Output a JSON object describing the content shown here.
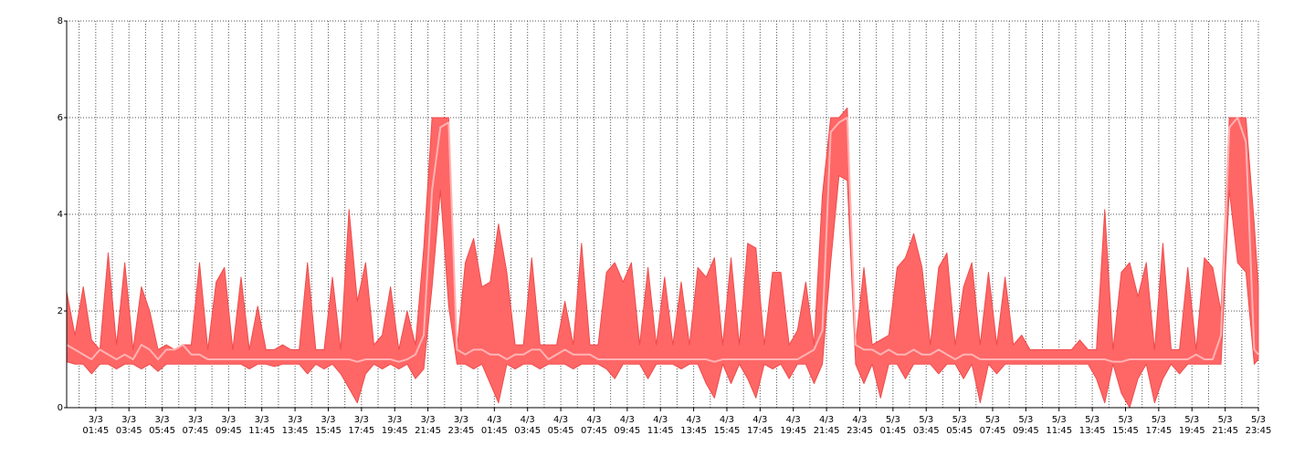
{
  "chart_data": {
    "type": "range-area",
    "x": [
      "3/3 00:00",
      "3/3 00:30",
      "3/3 01:00",
      "3/3 01:30",
      "3/3 02:00",
      "3/3 02:30",
      "3/3 03:00",
      "3/3 03:30",
      "3/3 04:00",
      "3/3 04:30",
      "3/3 05:00",
      "3/3 05:30",
      "3/3 06:00",
      "3/3 06:30",
      "3/3 07:00",
      "3/3 07:30",
      "3/3 08:00",
      "3/3 08:30",
      "3/3 09:00",
      "3/3 09:30",
      "3/3 10:00",
      "3/3 10:30",
      "3/3 11:00",
      "3/3 11:30",
      "3/3 12:00",
      "3/3 12:30",
      "3/3 13:00",
      "3/3 13:30",
      "3/3 14:00",
      "3/3 14:30",
      "3/3 15:00",
      "3/3 15:30",
      "3/3 16:00",
      "3/3 16:30",
      "3/3 17:00",
      "3/3 17:30",
      "3/3 18:00",
      "3/3 18:30",
      "3/3 19:00",
      "3/3 19:30",
      "3/3 20:00",
      "3/3 20:30",
      "3/3 21:00",
      "3/3 21:30",
      "3/3 22:00",
      "3/3 22:30",
      "3/3 23:00",
      "3/3 23:30",
      "4/3 00:00",
      "4/3 00:30",
      "4/3 01:00",
      "4/3 01:30",
      "4/3 02:00",
      "4/3 02:30",
      "4/3 03:00",
      "4/3 03:30",
      "4/3 04:00",
      "4/3 04:30",
      "4/3 05:00",
      "4/3 05:30",
      "4/3 06:00",
      "4/3 06:30",
      "4/3 07:00",
      "4/3 07:30",
      "4/3 08:00",
      "4/3 08:30",
      "4/3 09:00",
      "4/3 09:30",
      "4/3 10:00",
      "4/3 10:30",
      "4/3 11:00",
      "4/3 11:30",
      "4/3 12:00",
      "4/3 12:30",
      "4/3 13:00",
      "4/3 13:30",
      "4/3 14:00",
      "4/3 14:30",
      "4/3 15:00",
      "4/3 15:30",
      "4/3 16:00",
      "4/3 16:30",
      "4/3 17:00",
      "4/3 17:30",
      "4/3 18:00",
      "4/3 18:30",
      "4/3 19:00",
      "4/3 19:30",
      "4/3 20:00",
      "4/3 20:30",
      "4/3 21:00",
      "4/3 21:30",
      "4/3 22:00",
      "4/3 22:30",
      "4/3 23:00",
      "4/3 23:30",
      "5/3 00:00",
      "5/3 00:30",
      "5/3 01:00",
      "5/3 01:30",
      "5/3 02:00",
      "5/3 02:30",
      "5/3 03:00",
      "5/3 03:30",
      "5/3 04:00",
      "5/3 04:30",
      "5/3 05:00",
      "5/3 05:30",
      "5/3 06:00",
      "5/3 06:30",
      "5/3 07:00",
      "5/3 07:30",
      "5/3 08:00",
      "5/3 08:30",
      "5/3 09:00",
      "5/3 09:30",
      "5/3 10:00",
      "5/3 10:30",
      "5/3 11:00",
      "5/3 11:30",
      "5/3 12:00",
      "5/3 12:30",
      "5/3 13:00",
      "5/3 13:30",
      "5/3 14:00",
      "5/3 14:30",
      "5/3 15:00",
      "5/3 15:30",
      "5/3 16:00",
      "5/3 16:30",
      "5/3 17:00",
      "5/3 17:30",
      "5/3 18:00",
      "5/3 18:30",
      "5/3 19:00",
      "5/3 19:30",
      "5/3 20:00",
      "5/3 20:30",
      "5/3 21:00",
      "5/3 21:30",
      "5/3 22:00",
      "5/3 22:30",
      "5/3 23:00",
      "5/3 23:30",
      "5/3 23:45"
    ],
    "band": {
      "color": "#ff6666",
      "edge_color": "#ee4c4c",
      "upper": [
        2.4,
        1.5,
        2.5,
        1.4,
        1.2,
        3.2,
        1.3,
        3.0,
        1.2,
        2.5,
        2.0,
        1.2,
        1.3,
        1.2,
        1.3,
        1.3,
        3.0,
        1.2,
        2.6,
        2.9,
        1.2,
        2.7,
        1.2,
        2.1,
        1.2,
        1.2,
        1.3,
        1.2,
        1.2,
        3.0,
        1.2,
        1.2,
        2.7,
        1.2,
        4.1,
        2.2,
        3.0,
        1.3,
        1.5,
        2.5,
        1.2,
        2.0,
        1.3,
        3.3,
        6,
        6,
        6,
        1.2,
        3.0,
        3.5,
        2.5,
        2.6,
        3.8,
        2.8,
        1.3,
        1.3,
        3.1,
        1.3,
        1.3,
        1.3,
        2.2,
        1.3,
        3.4,
        1.3,
        1.3,
        2.8,
        3.0,
        2.6,
        3.0,
        1.3,
        2.9,
        1.3,
        2.7,
        1.3,
        2.6,
        1.3,
        2.9,
        2.7,
        3.1,
        1.3,
        3.1,
        1.3,
        3.4,
        3.3,
        1.3,
        2.8,
        2.8,
        1.3,
        1.6,
        2.6,
        1.3,
        4.4,
        6,
        6,
        6.2,
        1.3,
        2.9,
        1.3,
        1.4,
        1.5,
        2.9,
        3.1,
        3.6,
        2.9,
        1.3,
        2.9,
        3.2,
        1.3,
        2.5,
        3.0,
        1.3,
        2.8,
        1.3,
        2.7,
        1.3,
        1.5,
        1.2,
        1.2,
        1.2,
        1.2,
        1.2,
        1.2,
        1.4,
        1.2,
        1.2,
        4.1,
        1.2,
        2.8,
        3.0,
        2.3,
        3.0,
        1.2,
        3.4,
        1.2,
        1.2,
        2.9,
        1.2,
        3.1,
        2.9,
        2.0,
        6,
        6,
        6,
        3.8,
        2.5
      ],
      "lower": [
        0.95,
        0.9,
        0.9,
        0.7,
        0.9,
        0.9,
        0.8,
        0.9,
        0.9,
        0.8,
        0.9,
        0.75,
        0.9,
        0.9,
        0.9,
        0.9,
        0.9,
        0.9,
        0.9,
        0.9,
        0.9,
        0.9,
        0.8,
        0.9,
        0.9,
        0.85,
        0.9,
        0.9,
        0.9,
        0.7,
        0.9,
        0.8,
        0.9,
        0.7,
        0.4,
        0.1,
        0.7,
        0.9,
        0.8,
        0.9,
        0.8,
        0.9,
        0.6,
        0.8,
        2.5,
        4.5,
        2.1,
        0.9,
        0.9,
        0.8,
        0.9,
        0.5,
        0.1,
        0.9,
        0.8,
        0.9,
        0.9,
        0.8,
        0.9,
        0.9,
        0.9,
        0.8,
        0.9,
        0.9,
        0.9,
        0.8,
        0.6,
        0.9,
        0.9,
        0.9,
        0.6,
        0.9,
        0.9,
        0.9,
        0.8,
        0.9,
        0.9,
        0.5,
        0.2,
        0.9,
        0.5,
        0.9,
        0.6,
        0.2,
        0.9,
        0.8,
        0.9,
        0.6,
        0.9,
        0.9,
        0.5,
        0.9,
        3,
        4.8,
        4.7,
        0.9,
        0.5,
        0.9,
        0.2,
        0.9,
        0.9,
        0.6,
        0.9,
        0.9,
        0.9,
        0.7,
        0.9,
        0.9,
        0.6,
        0.9,
        0.1,
        0.9,
        0.7,
        0.9,
        0.9,
        0.9,
        0.9,
        0.9,
        0.9,
        0.9,
        0.9,
        0.9,
        0.9,
        0.9,
        0.6,
        0.1,
        0.9,
        0.3,
        0.0,
        0.6,
        0.9,
        0.1,
        0.6,
        0.9,
        0.7,
        0.9,
        0.9,
        0.9,
        0.9,
        0.9,
        4.5,
        3.0,
        2.8,
        0.9,
        1.0
      ]
    },
    "line": {
      "color": "#ffb3b3",
      "values": [
        1.3,
        1.2,
        1.1,
        1.0,
        1.2,
        1.1,
        1.0,
        1.1,
        1.0,
        1.3,
        1.2,
        1.0,
        1.2,
        1.2,
        1.3,
        1.1,
        1.1,
        1.0,
        1.0,
        1.0,
        1.0,
        1.0,
        1.0,
        1.0,
        1.0,
        1.0,
        1.0,
        1.0,
        1.0,
        1.0,
        1.0,
        1.0,
        1.0,
        1.0,
        1.0,
        0.95,
        1.0,
        1.0,
        1.0,
        1.0,
        0.95,
        1.0,
        1.1,
        1.5,
        4.5,
        5.8,
        5.9,
        1.2,
        1.1,
        1.2,
        1.2,
        1.1,
        1.1,
        1.0,
        1.1,
        1.1,
        1.2,
        1.2,
        1.0,
        1.1,
        1.2,
        1.1,
        1.1,
        1.1,
        1.0,
        1.0,
        1.0,
        1.0,
        1.0,
        1.0,
        1.0,
        1.0,
        1.0,
        1.0,
        1.0,
        1.0,
        1.0,
        1.0,
        0.95,
        1.0,
        1.0,
        1.0,
        1.0,
        1.0,
        1.0,
        1.0,
        1.0,
        1.0,
        1.0,
        1.1,
        1.2,
        1.6,
        5.7,
        5.9,
        6.0,
        1.3,
        1.2,
        1.2,
        1.1,
        1.2,
        1.1,
        1.1,
        1.2,
        1.1,
        1.1,
        1.2,
        1.1,
        1.0,
        1.1,
        1.1,
        1.0,
        1.0,
        1.0,
        1.0,
        1.0,
        1.0,
        1.0,
        1.0,
        1.0,
        1.0,
        1.0,
        1.0,
        1.0,
        1.0,
        1.0,
        1.0,
        0.95,
        0.95,
        1.0,
        1.0,
        1.0,
        1.0,
        1.0,
        1.0,
        1.0,
        1.0,
        1.1,
        1.0,
        1.0,
        1.5,
        5.8,
        6.0,
        5.5,
        1.2,
        1.1
      ]
    },
    "xlim": [
      "3/3 00:00",
      "5/3 23:45"
    ],
    "xticks": [
      {
        "value": "3/3 01:45",
        "label": [
          "3/3",
          "01:45"
        ]
      },
      {
        "value": "3/3 03:45",
        "label": [
          "3/3",
          "03:45"
        ]
      },
      {
        "value": "3/3 05:45",
        "label": [
          "3/3",
          "05:45"
        ]
      },
      {
        "value": "3/3 07:45",
        "label": [
          "3/3",
          "07:45"
        ]
      },
      {
        "value": "3/3 09:45",
        "label": [
          "3/3",
          "09:45"
        ]
      },
      {
        "value": "3/3 11:45",
        "label": [
          "3/3",
          "11:45"
        ]
      },
      {
        "value": "3/3 13:45",
        "label": [
          "3/3",
          "13:45"
        ]
      },
      {
        "value": "3/3 15:45",
        "label": [
          "3/3",
          "15:45"
        ]
      },
      {
        "value": "3/3 17:45",
        "label": [
          "3/3",
          "17:45"
        ]
      },
      {
        "value": "3/3 19:45",
        "label": [
          "3/3",
          "19:45"
        ]
      },
      {
        "value": "3/3 21:45",
        "label": [
          "3/3",
          "21:45"
        ]
      },
      {
        "value": "3/3 23:45",
        "label": [
          "3/3",
          "23:45"
        ]
      },
      {
        "value": "4/3 01:45",
        "label": [
          "4/3",
          "01:45"
        ]
      },
      {
        "value": "4/3 03:45",
        "label": [
          "4/3",
          "03:45"
        ]
      },
      {
        "value": "4/3 05:45",
        "label": [
          "4/3",
          "05:45"
        ]
      },
      {
        "value": "4/3 07:45",
        "label": [
          "4/3",
          "07:45"
        ]
      },
      {
        "value": "4/3 09:45",
        "label": [
          "4/3",
          "09:45"
        ]
      },
      {
        "value": "4/3 11:45",
        "label": [
          "4/3",
          "11:45"
        ]
      },
      {
        "value": "4/3 13:45",
        "label": [
          "4/3",
          "13:45"
        ]
      },
      {
        "value": "4/3 15:45",
        "label": [
          "4/3",
          "15:45"
        ]
      },
      {
        "value": "4/3 17:45",
        "label": [
          "4/3",
          "17:45"
        ]
      },
      {
        "value": "4/3 19:45",
        "label": [
          "4/3",
          "19:45"
        ]
      },
      {
        "value": "4/3 21:45",
        "label": [
          "4/3",
          "21:45"
        ]
      },
      {
        "value": "4/3 23:45",
        "label": [
          "4/3",
          "23:45"
        ]
      },
      {
        "value": "5/3 01:45",
        "label": [
          "5/3",
          "01:45"
        ]
      },
      {
        "value": "5/3 03:45",
        "label": [
          "5/3",
          "03:45"
        ]
      },
      {
        "value": "5/3 05:45",
        "label": [
          "5/3",
          "05:45"
        ]
      },
      {
        "value": "5/3 07:45",
        "label": [
          "5/3",
          "07:45"
        ]
      },
      {
        "value": "5/3 09:45",
        "label": [
          "5/3",
          "09:45"
        ]
      },
      {
        "value": "5/3 11:45",
        "label": [
          "5/3",
          "11:45"
        ]
      },
      {
        "value": "5/3 13:45",
        "label": [
          "5/3",
          "13:45"
        ]
      },
      {
        "value": "5/3 15:45",
        "label": [
          "5/3",
          "15:45"
        ]
      },
      {
        "value": "5/3 17:45",
        "label": [
          "5/3",
          "17:45"
        ]
      },
      {
        "value": "5/3 19:45",
        "label": [
          "5/3",
          "19:45"
        ]
      },
      {
        "value": "5/3 21:45",
        "label": [
          "5/3",
          "21:45"
        ]
      },
      {
        "value": "5/3 23:45",
        "label": [
          "5/3",
          "23:45"
        ]
      }
    ],
    "xminorticks": [
      "3/3 00:45",
      "3/3 02:45",
      "3/3 04:45",
      "3/3 06:45",
      "3/3 08:45",
      "3/3 10:45",
      "3/3 12:45",
      "3/3 14:45",
      "3/3 16:45",
      "3/3 18:45",
      "3/3 20:45",
      "3/3 22:45",
      "4/3 00:45",
      "4/3 02:45",
      "4/3 04:45",
      "4/3 06:45",
      "4/3 08:45",
      "4/3 10:45",
      "4/3 12:45",
      "4/3 14:45",
      "4/3 16:45",
      "4/3 18:45",
      "4/3 20:45",
      "4/3 22:45",
      "5/3 00:45",
      "5/3 02:45",
      "5/3 04:45",
      "5/3 06:45",
      "5/3 08:45",
      "5/3 10:45",
      "5/3 12:45",
      "5/3 14:45",
      "5/3 16:45",
      "5/3 18:45",
      "5/3 20:45",
      "5/3 22:45"
    ],
    "ylim": [
      0,
      8
    ],
    "yticks": [
      0,
      2,
      4,
      6,
      8
    ],
    "grid": true
  }
}
